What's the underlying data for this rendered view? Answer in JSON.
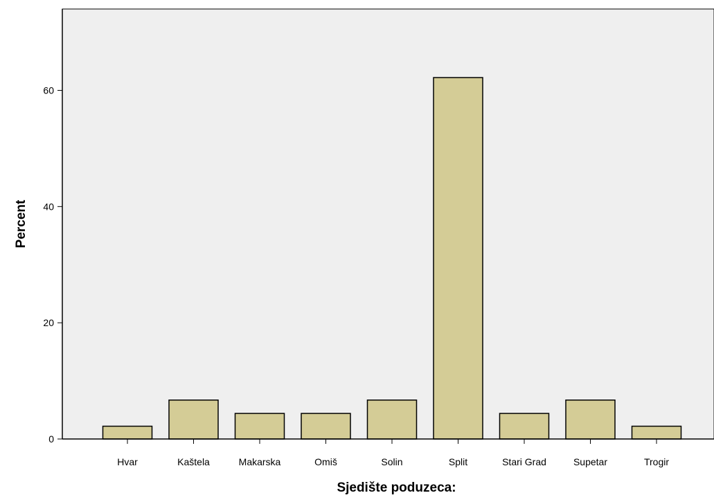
{
  "chart_data": {
    "type": "bar",
    "title": "",
    "xlabel": "Sjedište poduzeca:",
    "ylabel": "Percent",
    "categories": [
      "Hvar",
      "Kaštela",
      "Makarska",
      "Omiš",
      "Solin",
      "Split",
      "Stari Grad",
      "Supetar",
      "Trogir"
    ],
    "values": [
      2.2,
      6.7,
      4.4,
      4.4,
      6.7,
      62.2,
      4.4,
      6.7,
      2.2
    ],
    "ylim": [
      0,
      74
    ],
    "yticks": [
      0,
      20,
      40,
      60
    ],
    "grid": false,
    "legend": "none",
    "colors": {
      "plot_background": "#efefef",
      "bar_fill": "#d4cc96",
      "bar_stroke": "#000000"
    }
  }
}
